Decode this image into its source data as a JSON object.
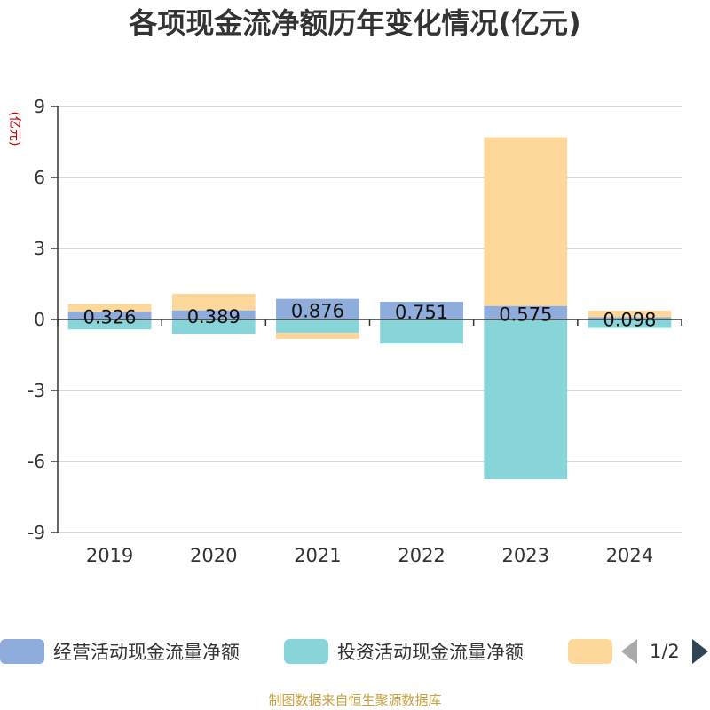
{
  "title": "各项现金流净额历年变化情况(亿元)",
  "chart_data": {
    "type": "bar",
    "stacked": true,
    "categories": [
      "2019",
      "2020",
      "2021",
      "2022",
      "2023",
      "2024"
    ],
    "series": [
      {
        "name": "经营活动现金流量净额",
        "color": "#8eaddc",
        "values": [
          0.326,
          0.389,
          0.876,
          0.751,
          0.575,
          0.098
        ]
      },
      {
        "name": "投资活动现金流量净额",
        "color": "#88d5d9",
        "values": [
          -0.42,
          -0.6,
          -0.56,
          -1.02,
          -6.75,
          -0.36
        ]
      },
      {
        "name": "",
        "color": "#fdd89a",
        "values": [
          0.33,
          0.7,
          -0.27,
          0.0,
          7.13,
          0.28
        ]
      }
    ],
    "data_labels": [
      "0.326",
      "0.389",
      "0.876",
      "0.751",
      "0.575",
      "0.098"
    ],
    "ylabel": "(亿元)",
    "ylim": [
      -9,
      9
    ],
    "yticks": [
      9,
      6,
      3,
      0,
      -3,
      -6,
      -9
    ],
    "grid": true,
    "legend_position": "bottom"
  },
  "legend": {
    "page_indicator": "1/2"
  },
  "footer": "制图数据来自恒生聚源数据库"
}
